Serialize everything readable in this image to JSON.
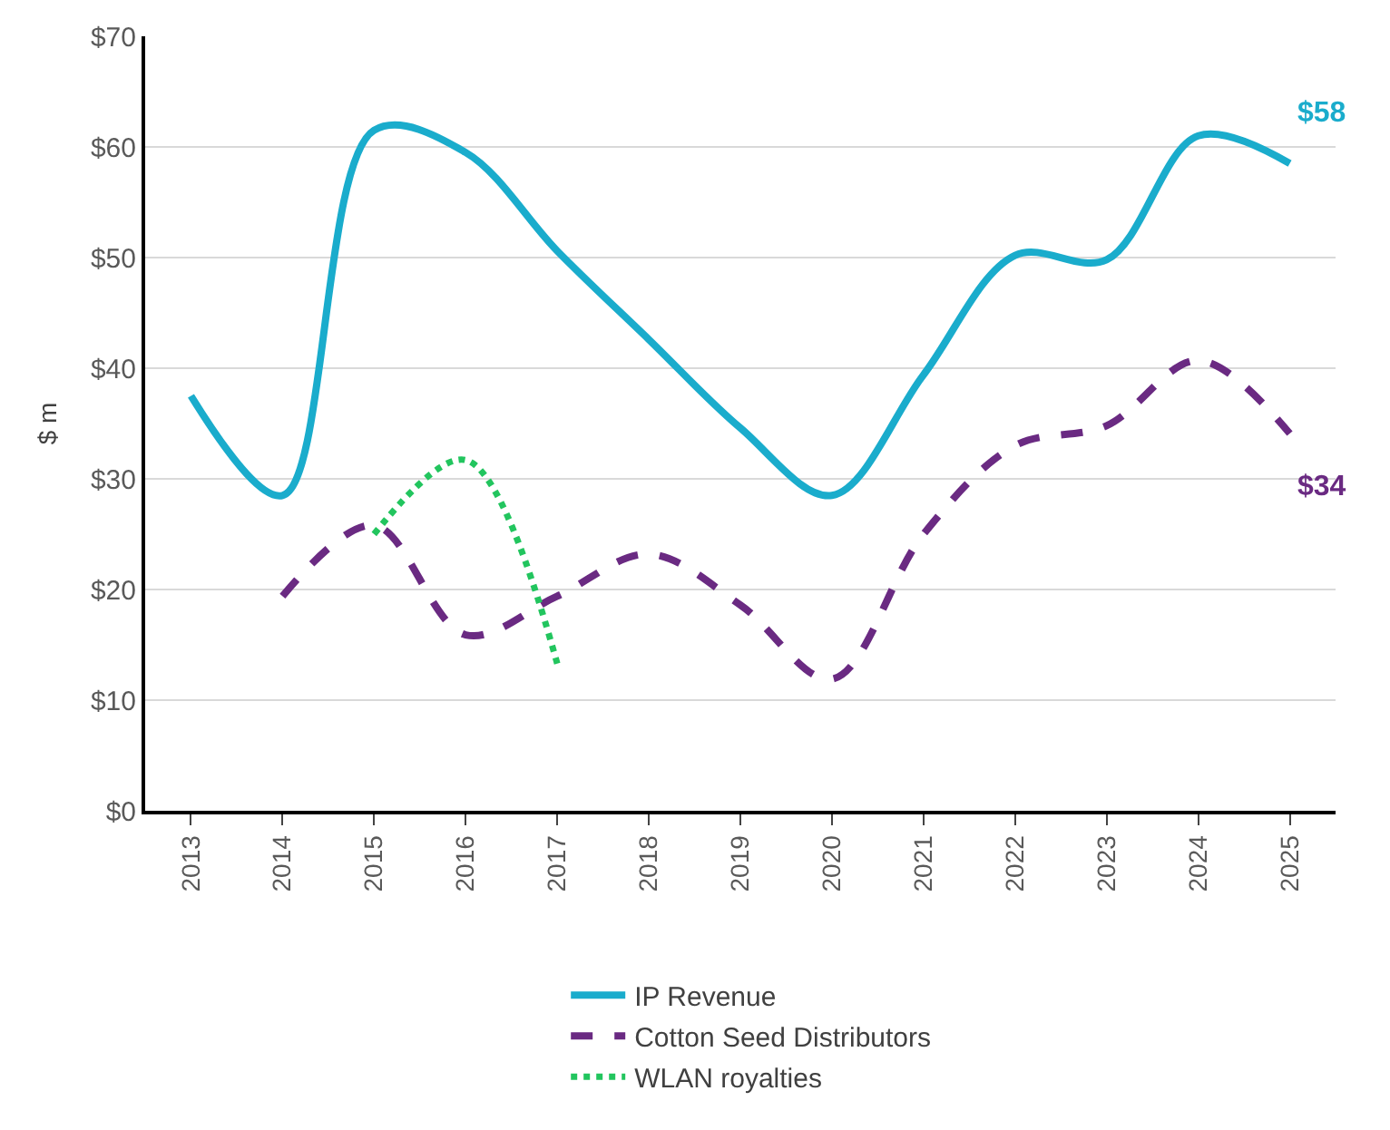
{
  "chart_data": {
    "type": "line",
    "ylabel": "$ m",
    "categories": [
      "2013",
      "2014",
      "2015",
      "2016",
      "2017",
      "2018",
      "2019",
      "2020",
      "2021",
      "2022",
      "2023",
      "2024",
      "2025"
    ],
    "series": [
      {
        "name": "IP Revenue",
        "color": "#1aaccc",
        "line_style": "solid",
        "values": [
          37.5,
          28.5,
          61.5,
          59.5,
          50.6,
          42.6,
          34.6,
          28.5,
          39.4,
          50.2,
          49.8,
          61,
          58.5
        ]
      },
      {
        "name": "Cotton Seed Distributors",
        "color": "#6a2a82",
        "line_style": "dashed",
        "values": [
          null,
          19.4,
          25.8,
          15.9,
          19.4,
          23.2,
          18.6,
          11.9,
          25,
          33,
          34.8,
          40.7,
          34.1
        ]
      },
      {
        "name": "WLAN royalties",
        "color": "#22c55e",
        "line_style": "dotted",
        "values": [
          null,
          null,
          25,
          31.7,
          13.3,
          null,
          null,
          null,
          null,
          null,
          null,
          null,
          null
        ]
      }
    ],
    "ylim": [
      0,
      70
    ],
    "yticks": [
      {
        "value": 0,
        "label": "$0"
      },
      {
        "value": 10,
        "label": "$10"
      },
      {
        "value": 20,
        "label": "$20"
      },
      {
        "value": 30,
        "label": "$30"
      },
      {
        "value": 40,
        "label": "$40"
      },
      {
        "value": 50,
        "label": "$50"
      },
      {
        "value": 60,
        "label": "$60"
      },
      {
        "value": 70,
        "label": "$70"
      }
    ],
    "annotations": [
      {
        "text": "$58",
        "x": "2025",
        "y": 58.5
      },
      {
        "text": "$34",
        "x": "2025",
        "y": 34.1
      }
    ],
    "grid": "y",
    "legend": "bottom",
    "marker": "none"
  }
}
